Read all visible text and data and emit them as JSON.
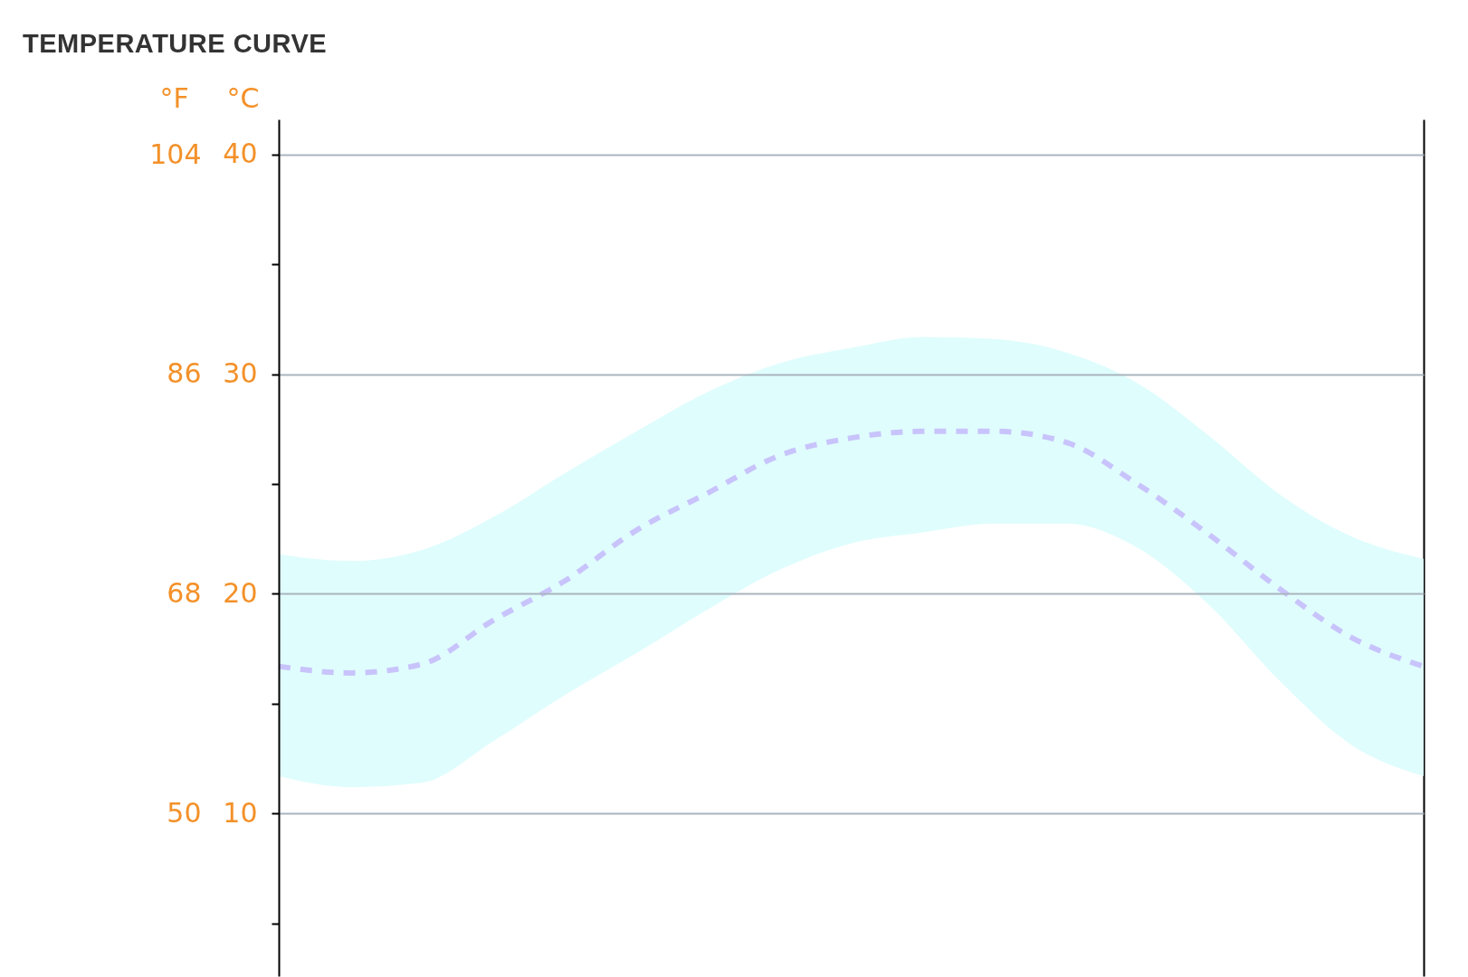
{
  "chart_data": {
    "type": "line",
    "title": "TEMPERATURE CURVE",
    "ylabel": "°C",
    "y2label": "°F",
    "categories": [
      null,
      null,
      null,
      null,
      null,
      null,
      null,
      null,
      null,
      null,
      null,
      null,
      null,
      null,
      null,
      null,
      null
    ],
    "ylim": [
      2.6,
      41.6
    ],
    "yticks": [
      {
        "value": 5,
        "label": null
      },
      10,
      {
        "value": 15,
        "label": null
      },
      20,
      {
        "value": 25,
        "label": null
      },
      30,
      {
        "value": 35,
        "label": null
      },
      40
    ],
    "y2lim": [
      36.7,
      106.9
    ],
    "y2ticks": [
      50,
      68,
      86,
      104
    ],
    "grid": "y",
    "series": [
      {
        "color": "#c8c4fb",
        "line_style": "dashed",
        "values": [
          16.7,
          16.4,
          16.8,
          18.8,
          20.6,
          22.9,
          24.6,
          26.3,
          27.1,
          27.4,
          27.4,
          26.9,
          25.0,
          22.7,
          20.2,
          18.0,
          16.7
        ],
        "lower": [
          11.7,
          11.2,
          11.4,
          13.3,
          15.4,
          17.3,
          19.3,
          21.1,
          22.3,
          22.8,
          23.2,
          23.2,
          22.1,
          19.5,
          16.0,
          13.1,
          11.7
        ],
        "upper": [
          21.8,
          21.5,
          22.0,
          23.5,
          25.5,
          27.4,
          29.2,
          30.5,
          31.2,
          31.7,
          31.6,
          31.0,
          29.6,
          27.2,
          24.5,
          22.6,
          21.6
        ]
      }
    ]
  }
}
